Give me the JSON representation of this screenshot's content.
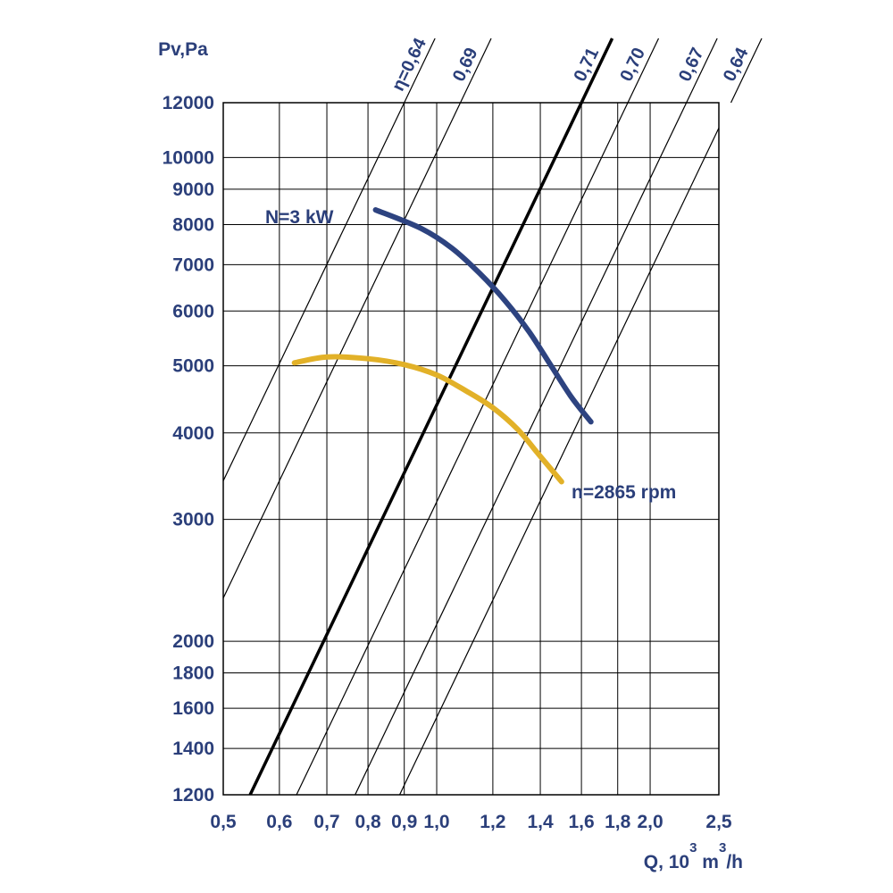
{
  "colors": {
    "text": "#2b3f7a",
    "grid": "#000000",
    "power_curve": "#2d4380",
    "rpm_curve": "#e2b128",
    "main_eta": "#000000"
  },
  "chart_data": {
    "type": "line",
    "title": "",
    "ylabel": "Pv,Pa",
    "xlabel": {
      "prefix": "Q, 10",
      "exp1": "3",
      "middle": " m",
      "exp2": "3",
      "suffix": "/h"
    },
    "x_scale": "log",
    "y_scale": "log",
    "xlim": [
      0.5,
      2.5
    ],
    "ylim": [
      1200,
      12000
    ],
    "grid": true,
    "x_ticks": [
      {
        "value": 0.5,
        "label": "0,5"
      },
      {
        "value": 0.6,
        "label": "0,6"
      },
      {
        "value": 0.7,
        "label": "0,7"
      },
      {
        "value": 0.8,
        "label": "0,8"
      },
      {
        "value": 0.9,
        "label": "0,9"
      },
      {
        "value": 1.0,
        "label": "1,0"
      },
      {
        "value": 1.2,
        "label": "1,2"
      },
      {
        "value": 1.4,
        "label": "1,4"
      },
      {
        "value": 1.6,
        "label": "1,6"
      },
      {
        "value": 1.8,
        "label": "1,8"
      },
      {
        "value": 2.0,
        "label": "2,0"
      },
      {
        "value": 2.5,
        "label": "2,5"
      }
    ],
    "y_ticks": [
      {
        "value": 1200,
        "label": "1200"
      },
      {
        "value": 1400,
        "label": "1400"
      },
      {
        "value": 1600,
        "label": "1600"
      },
      {
        "value": 1800,
        "label": "1800"
      },
      {
        "value": 2000,
        "label": "2000"
      },
      {
        "value": 3000,
        "label": "3000"
      },
      {
        "value": 4000,
        "label": "4000"
      },
      {
        "value": 5000,
        "label": "5000"
      },
      {
        "value": 6000,
        "label": "6000"
      },
      {
        "value": 7000,
        "label": "7000"
      },
      {
        "value": 8000,
        "label": "8000"
      },
      {
        "value": 9000,
        "label": "9000"
      },
      {
        "value": 10000,
        "label": "10000"
      },
      {
        "value": 12000,
        "label": "12000"
      }
    ],
    "efficiency_lines": [
      {
        "label": "η=0,64",
        "x_at_ymax": 0.9,
        "main": false
      },
      {
        "label": "0,69",
        "x_at_ymax": 1.08,
        "main": false
      },
      {
        "label": "0,71",
        "x_at_ymax": 1.6,
        "main": true
      },
      {
        "label": "0,70",
        "x_at_ymax": 1.86,
        "main": false
      },
      {
        "label": "0,67",
        "x_at_ymax": 2.25,
        "main": false
      },
      {
        "label": "0,64",
        "x_at_ymax": 2.6,
        "main": false
      }
    ],
    "series": [
      {
        "name": "N=3 kW",
        "points": [
          {
            "x": 0.82,
            "y": 8400
          },
          {
            "x": 0.95,
            "y": 7900
          },
          {
            "x": 1.05,
            "y": 7400
          },
          {
            "x": 1.15,
            "y": 6800
          },
          {
            "x": 1.25,
            "y": 6200
          },
          {
            "x": 1.35,
            "y": 5600
          },
          {
            "x": 1.45,
            "y": 5000
          },
          {
            "x": 1.55,
            "y": 4500
          },
          {
            "x": 1.65,
            "y": 4150
          }
        ]
      },
      {
        "name": "n=2865 rpm",
        "points": [
          {
            "x": 0.63,
            "y": 5050
          },
          {
            "x": 0.7,
            "y": 5150
          },
          {
            "x": 0.8,
            "y": 5120
          },
          {
            "x": 0.9,
            "y": 5020
          },
          {
            "x": 1.0,
            "y": 4850
          },
          {
            "x": 1.1,
            "y": 4600
          },
          {
            "x": 1.2,
            "y": 4350
          },
          {
            "x": 1.3,
            "y": 4050
          },
          {
            "x": 1.4,
            "y": 3700
          },
          {
            "x": 1.5,
            "y": 3400
          }
        ]
      }
    ]
  }
}
